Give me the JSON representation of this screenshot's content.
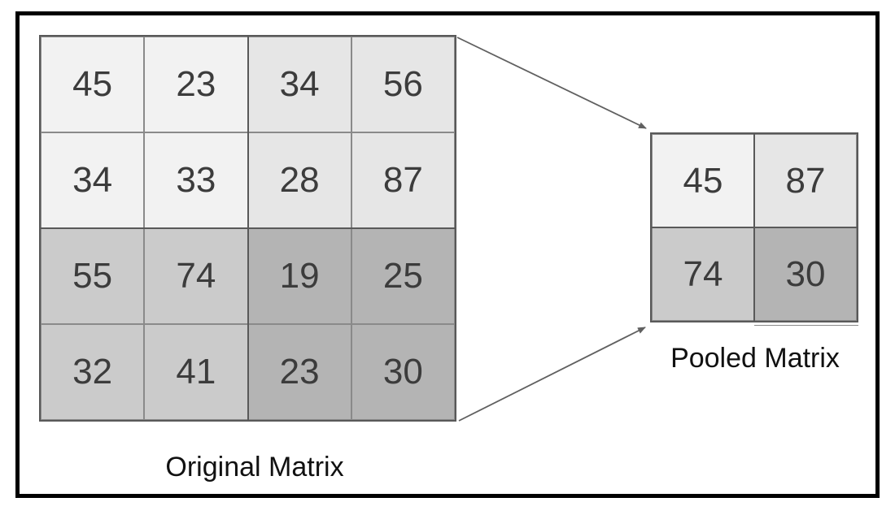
{
  "diagram": {
    "original_matrix": {
      "label": "Original Matrix",
      "rows": 4,
      "cols": 4,
      "cells": [
        {
          "value": "45",
          "color": "#f2f2f2"
        },
        {
          "value": "23",
          "color": "#f2f2f2"
        },
        {
          "value": "34",
          "color": "#e6e6e6"
        },
        {
          "value": "56",
          "color": "#e6e6e6"
        },
        {
          "value": "34",
          "color": "#f2f2f2"
        },
        {
          "value": "33",
          "color": "#f2f2f2"
        },
        {
          "value": "28",
          "color": "#e6e6e6"
        },
        {
          "value": "87",
          "color": "#e6e6e6"
        },
        {
          "value": "55",
          "color": "#cbcbcb"
        },
        {
          "value": "74",
          "color": "#cbcbcb"
        },
        {
          "value": "19",
          "color": "#b4b4b4"
        },
        {
          "value": "25",
          "color": "#b4b4b4"
        },
        {
          "value": "32",
          "color": "#cbcbcb"
        },
        {
          "value": "41",
          "color": "#cbcbcb"
        },
        {
          "value": "23",
          "color": "#b4b4b4"
        },
        {
          "value": "30",
          "color": "#b4b4b4"
        }
      ]
    },
    "pooled_matrix": {
      "label": "Pooled Matrix",
      "rows": 2,
      "cols": 2,
      "cells": [
        {
          "value": "45",
          "color": "#f2f2f2"
        },
        {
          "value": "87",
          "color": "#e6e6e6"
        },
        {
          "value": "74",
          "color": "#cbcbcb"
        },
        {
          "value": "30",
          "color": "#b4b4b4"
        }
      ]
    },
    "colors": {
      "frame_border": "#000000",
      "block_border": "#595959",
      "cell_border": "#8a8a8a",
      "number_text": "#3c3c3c",
      "label_text": "#111111",
      "arrow": "#606060"
    }
  }
}
